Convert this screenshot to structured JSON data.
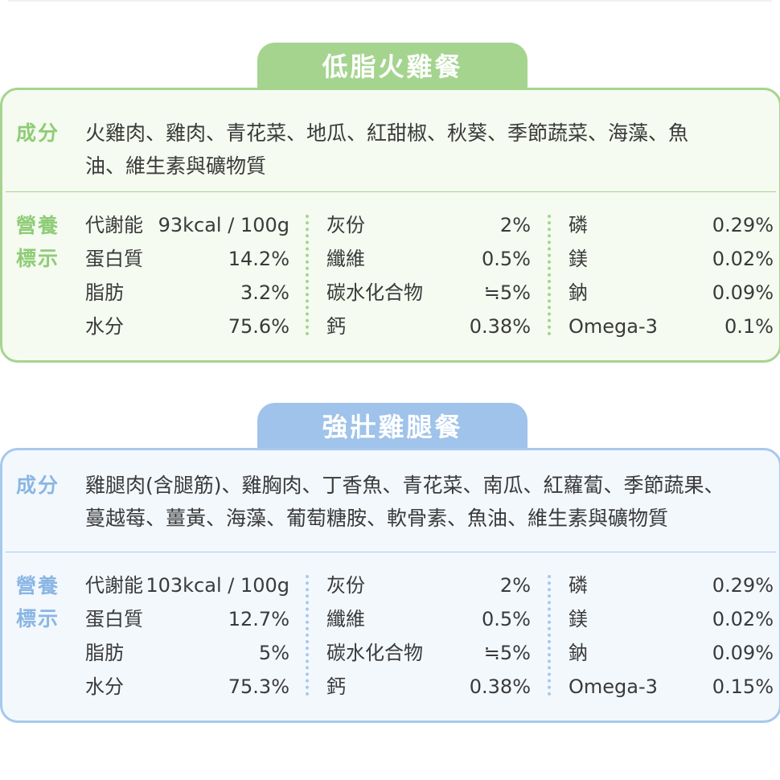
{
  "products": [
    {
      "title": "低脂火雞餐",
      "ingredients_label": "成分",
      "ingredients_line1": "火雞肉、雞肉、青花菜、地瓜、紅甜椒、秋葵、季節蔬菜、海藻、魚",
      "ingredients_line2": "油、維生素與礦物質",
      "nutrition_label_line1": "營養",
      "nutrition_label_line2": "標示",
      "rows": [
        {
          "n1": "代謝能",
          "v1": "93kcal / 100g",
          "n2": "灰份",
          "v2": "2%",
          "n3": "磷",
          "v3": "0.29%"
        },
        {
          "n1": "蛋白質",
          "v1": "14.2%",
          "n2": "纖維",
          "v2": "0.5%",
          "n3": "鎂",
          "v3": "0.02%"
        },
        {
          "n1": "脂肪",
          "v1": "3.2%",
          "n2": "碳水化合物",
          "v2": "≒5%",
          "n3": "鈉",
          "v3": "0.09%"
        },
        {
          "n1": "水分",
          "v1": "75.6%",
          "n2": "鈣",
          "v2": "0.38%",
          "n3": "Omega-3",
          "v3": "0.1%"
        }
      ]
    },
    {
      "title": "強壯雞腿餐",
      "ingredients_label": "成分",
      "ingredients_line1": "雞腿肉(含腿筋)、雞胸肉、丁香魚、青花菜、南瓜、紅蘿蔔、季節蔬果、",
      "ingredients_line2": "蔓越莓、薑黃、海藻、葡萄糖胺、軟骨素、魚油、維生素與礦物質",
      "nutrition_label_line1": "營養",
      "nutrition_label_line2": "標示",
      "rows": [
        {
          "n1": "代謝能",
          "v1": "103kcal / 100g",
          "n2": "灰份",
          "v2": "2%",
          "n3": "磷",
          "v3": "0.29%"
        },
        {
          "n1": "蛋白質",
          "v1": "12.7%",
          "n2": "纖維",
          "v2": "0.5%",
          "n3": "鎂",
          "v3": "0.02%"
        },
        {
          "n1": "脂肪",
          "v1": "5%",
          "n2": "碳水化合物",
          "v2": "≒5%",
          "n3": "鈉",
          "v3": "0.09%"
        },
        {
          "n1": "水分",
          "v1": "75.3%",
          "n2": "鈣",
          "v2": "0.38%",
          "n3": "Omega-3",
          "v3": "0.15%"
        }
      ]
    }
  ],
  "colors": {
    "green_accent": "#a5d48f",
    "green_background": "#f5fbf0",
    "blue_accent": "#9fc3ea",
    "blue_background": "#f3f8fd",
    "text": "#3a3a3a"
  }
}
